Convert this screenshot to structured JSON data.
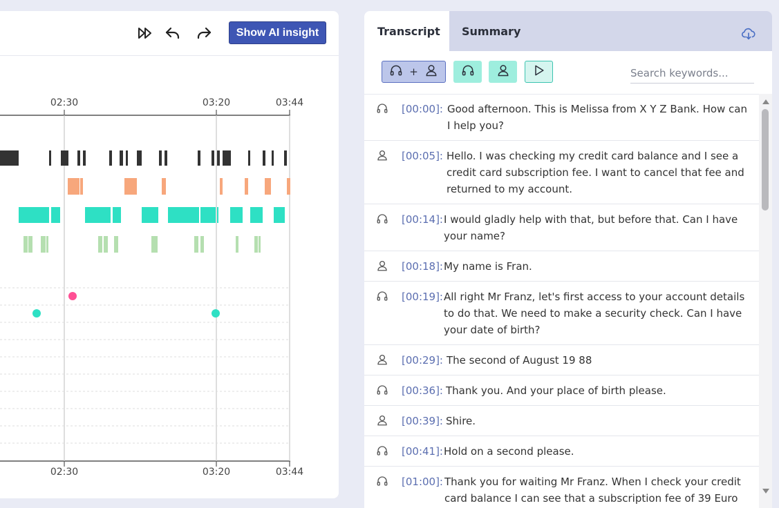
{
  "toolbar": {
    "icons": [
      "fast-forward-icon",
      "undo-icon",
      "redo-icon"
    ],
    "ai_button_label": "Show AI insight"
  },
  "timeline": {
    "top_ticks": [
      "02:30",
      "03:20",
      "03:44"
    ],
    "bottom_ticks": [
      "02:30",
      "03:20",
      "03:44"
    ],
    "tracks": {
      "speaker_1": {
        "color": "#333333"
      },
      "speaker_2": {
        "color": "#f7a77c"
      },
      "overlap": {
        "color": "#2ee0c4"
      },
      "silence": {
        "color": "#b5dfb0"
      }
    },
    "events": [
      {
        "color": "#ff4f94",
        "label": ""
      },
      {
        "color": "#2ee0c4",
        "label": ""
      },
      {
        "color": "#2ee0c4",
        "label": ""
      }
    ]
  },
  "transcript_panel": {
    "tabs": [
      "Transcript",
      "Summary"
    ],
    "active_tab": "Transcript",
    "download_icon": "cloud-download-icon",
    "filters": [
      {
        "name": "agent-plus-customer",
        "plus": "+"
      },
      {
        "name": "agent"
      },
      {
        "name": "customer"
      },
      {
        "name": "play"
      }
    ],
    "search_placeholder": "Search keywords...",
    "entries": [
      {
        "speaker": "agent",
        "time": "[00:00]:",
        "text": "Good afternoon. This is Melissa from X Y Z Bank. How can I help you?"
      },
      {
        "speaker": "customer",
        "time": "[00:05]:",
        "text": "Hello. I was checking my credit card balance and I see a credit card subscription fee. I want to cancel that fee and returned to my account."
      },
      {
        "speaker": "agent",
        "time": "[00:14]:",
        "text": "I would gladly help with that, but before that. Can I have your name?"
      },
      {
        "speaker": "customer",
        "time": "[00:18]:",
        "text": "My name is Fran."
      },
      {
        "speaker": "agent",
        "time": "[00:19]:",
        "text": "All right Mr Franz, let's first access to your account details to do that. We need to make a security check. Can I have your date of birth?"
      },
      {
        "speaker": "customer",
        "time": "[00:29]:",
        "text": "The second of August 19 88"
      },
      {
        "speaker": "agent",
        "time": "[00:36]:",
        "text": "Thank you. And your place of birth please."
      },
      {
        "speaker": "customer",
        "time": "[00:39]:",
        "text": "Shire."
      },
      {
        "speaker": "agent",
        "time": "[00:41]:",
        "text": "Hold on a second please."
      },
      {
        "speaker": "agent",
        "time": "[01:00]:",
        "text": "Thank you for waiting Mr Franz. When I check your credit card balance I can see that a subscription fee of 39 Euro"
      }
    ]
  }
}
